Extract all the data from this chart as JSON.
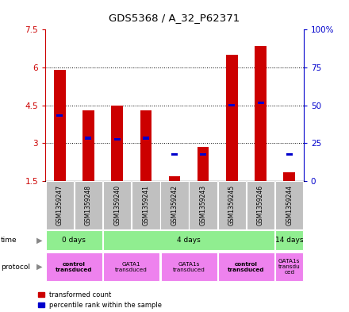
{
  "title": "GDS5368 / A_32_P62371",
  "samples": [
    "GSM1359247",
    "GSM1359248",
    "GSM1359240",
    "GSM1359241",
    "GSM1359242",
    "GSM1359243",
    "GSM1359245",
    "GSM1359246",
    "GSM1359244"
  ],
  "red_values": [
    5.9,
    4.3,
    4.5,
    4.3,
    1.7,
    2.85,
    6.5,
    6.85,
    1.85
  ],
  "blue_values": [
    4.1,
    3.2,
    3.15,
    3.2,
    2.55,
    2.55,
    4.5,
    4.6,
    2.55
  ],
  "ylim_left": [
    1.5,
    7.5
  ],
  "ylim_right": [
    0,
    100
  ],
  "yticks_left": [
    1.5,
    3.0,
    4.5,
    6.0,
    7.5
  ],
  "ytick_labels_left": [
    "1.5",
    "3",
    "4.5",
    "6",
    "7.5"
  ],
  "yticks_right": [
    0,
    25,
    50,
    75,
    100
  ],
  "ytick_labels_right": [
    "0",
    "25",
    "50",
    "75",
    "100%"
  ],
  "bar_color": "#CC0000",
  "blue_color": "#0000CC",
  "sample_bg_color": "#C0C0C0",
  "left_axis_color": "#CC0000",
  "right_axis_color": "#0000CC",
  "bar_width": 0.4,
  "time_groups": [
    {
      "label": "0 days",
      "start": 0,
      "end": 2
    },
    {
      "label": "4 days",
      "start": 2,
      "end": 8
    },
    {
      "label": "14 days",
      "start": 8,
      "end": 9
    }
  ],
  "protocol_groups": [
    {
      "label": "control\ntransduced",
      "start": 0,
      "end": 2,
      "bold": true
    },
    {
      "label": "GATA1\ntransduced",
      "start": 2,
      "end": 4,
      "bold": false
    },
    {
      "label": "GATA1s\ntransduced",
      "start": 4,
      "end": 6,
      "bold": false
    },
    {
      "label": "control\ntransduced",
      "start": 6,
      "end": 8,
      "bold": true
    },
    {
      "label": "GATA1s\ntransdu\nced",
      "start": 8,
      "end": 9,
      "bold": false
    }
  ],
  "time_color": "#90EE90",
  "protocol_color": "#EE82EE"
}
